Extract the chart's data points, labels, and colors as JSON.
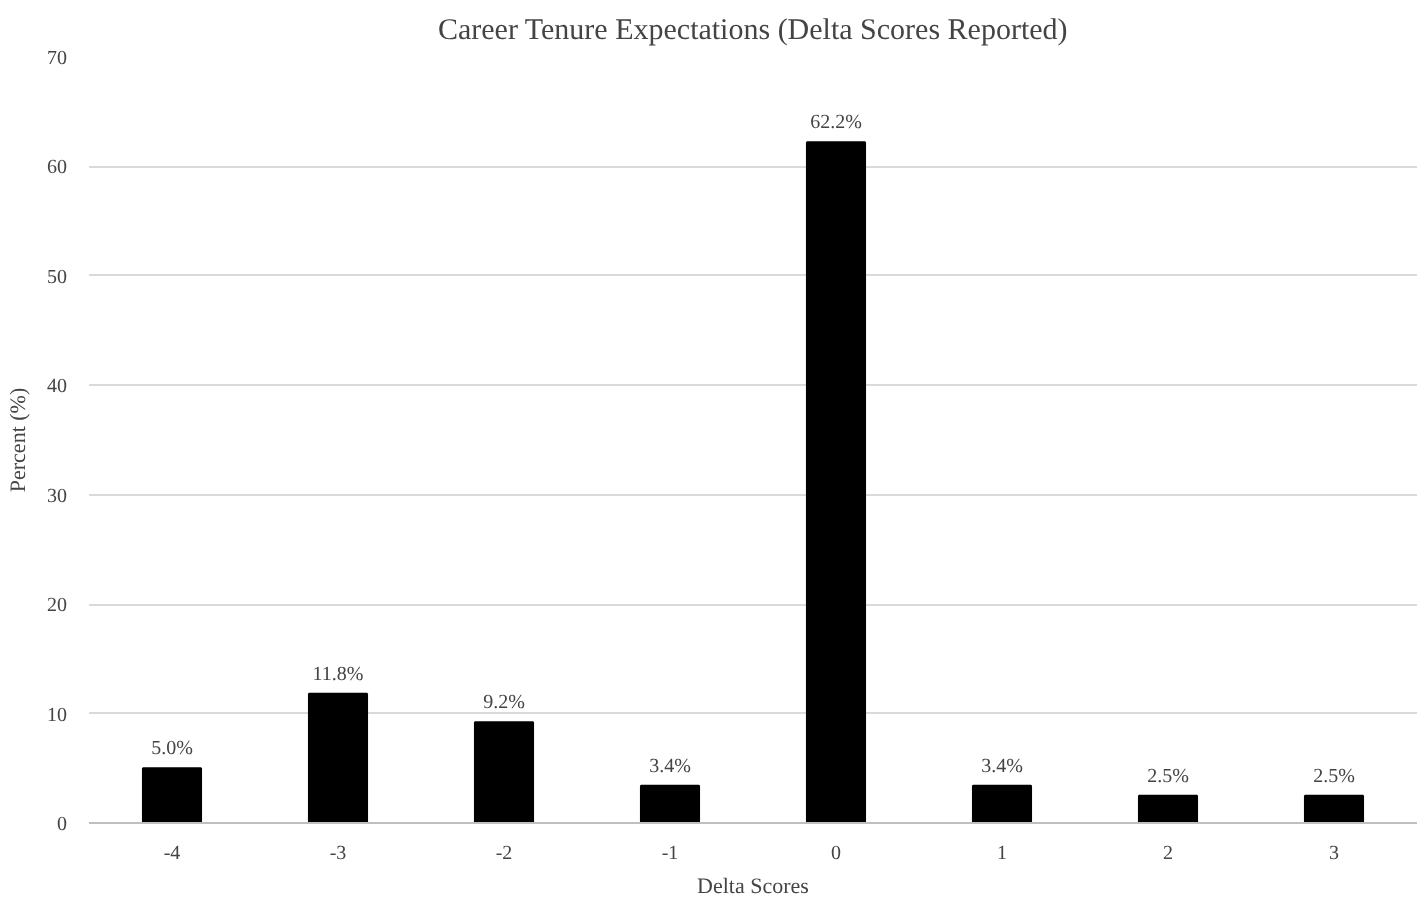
{
  "chart_data": {
    "type": "bar",
    "title": "Career Tenure Expectations (Delta Scores Reported)",
    "xlabel": "Delta Scores",
    "ylabel": "Percent (%)",
    "categories": [
      "-4",
      "-3",
      "-2",
      "-1",
      "0",
      "1",
      "2",
      "3"
    ],
    "values": [
      5.0,
      11.8,
      9.2,
      3.4,
      62.2,
      3.4,
      2.5,
      2.5
    ],
    "value_labels": [
      "5.0%",
      "11.8%",
      "9.2%",
      "3.4%",
      "62.2%",
      "3.4%",
      "2.5%",
      "2.5%"
    ],
    "color": "#000000",
    "ylim": [
      0,
      70
    ],
    "yticks": [
      0,
      10,
      20,
      30,
      40,
      50,
      60,
      70
    ],
    "grid": "y"
  }
}
